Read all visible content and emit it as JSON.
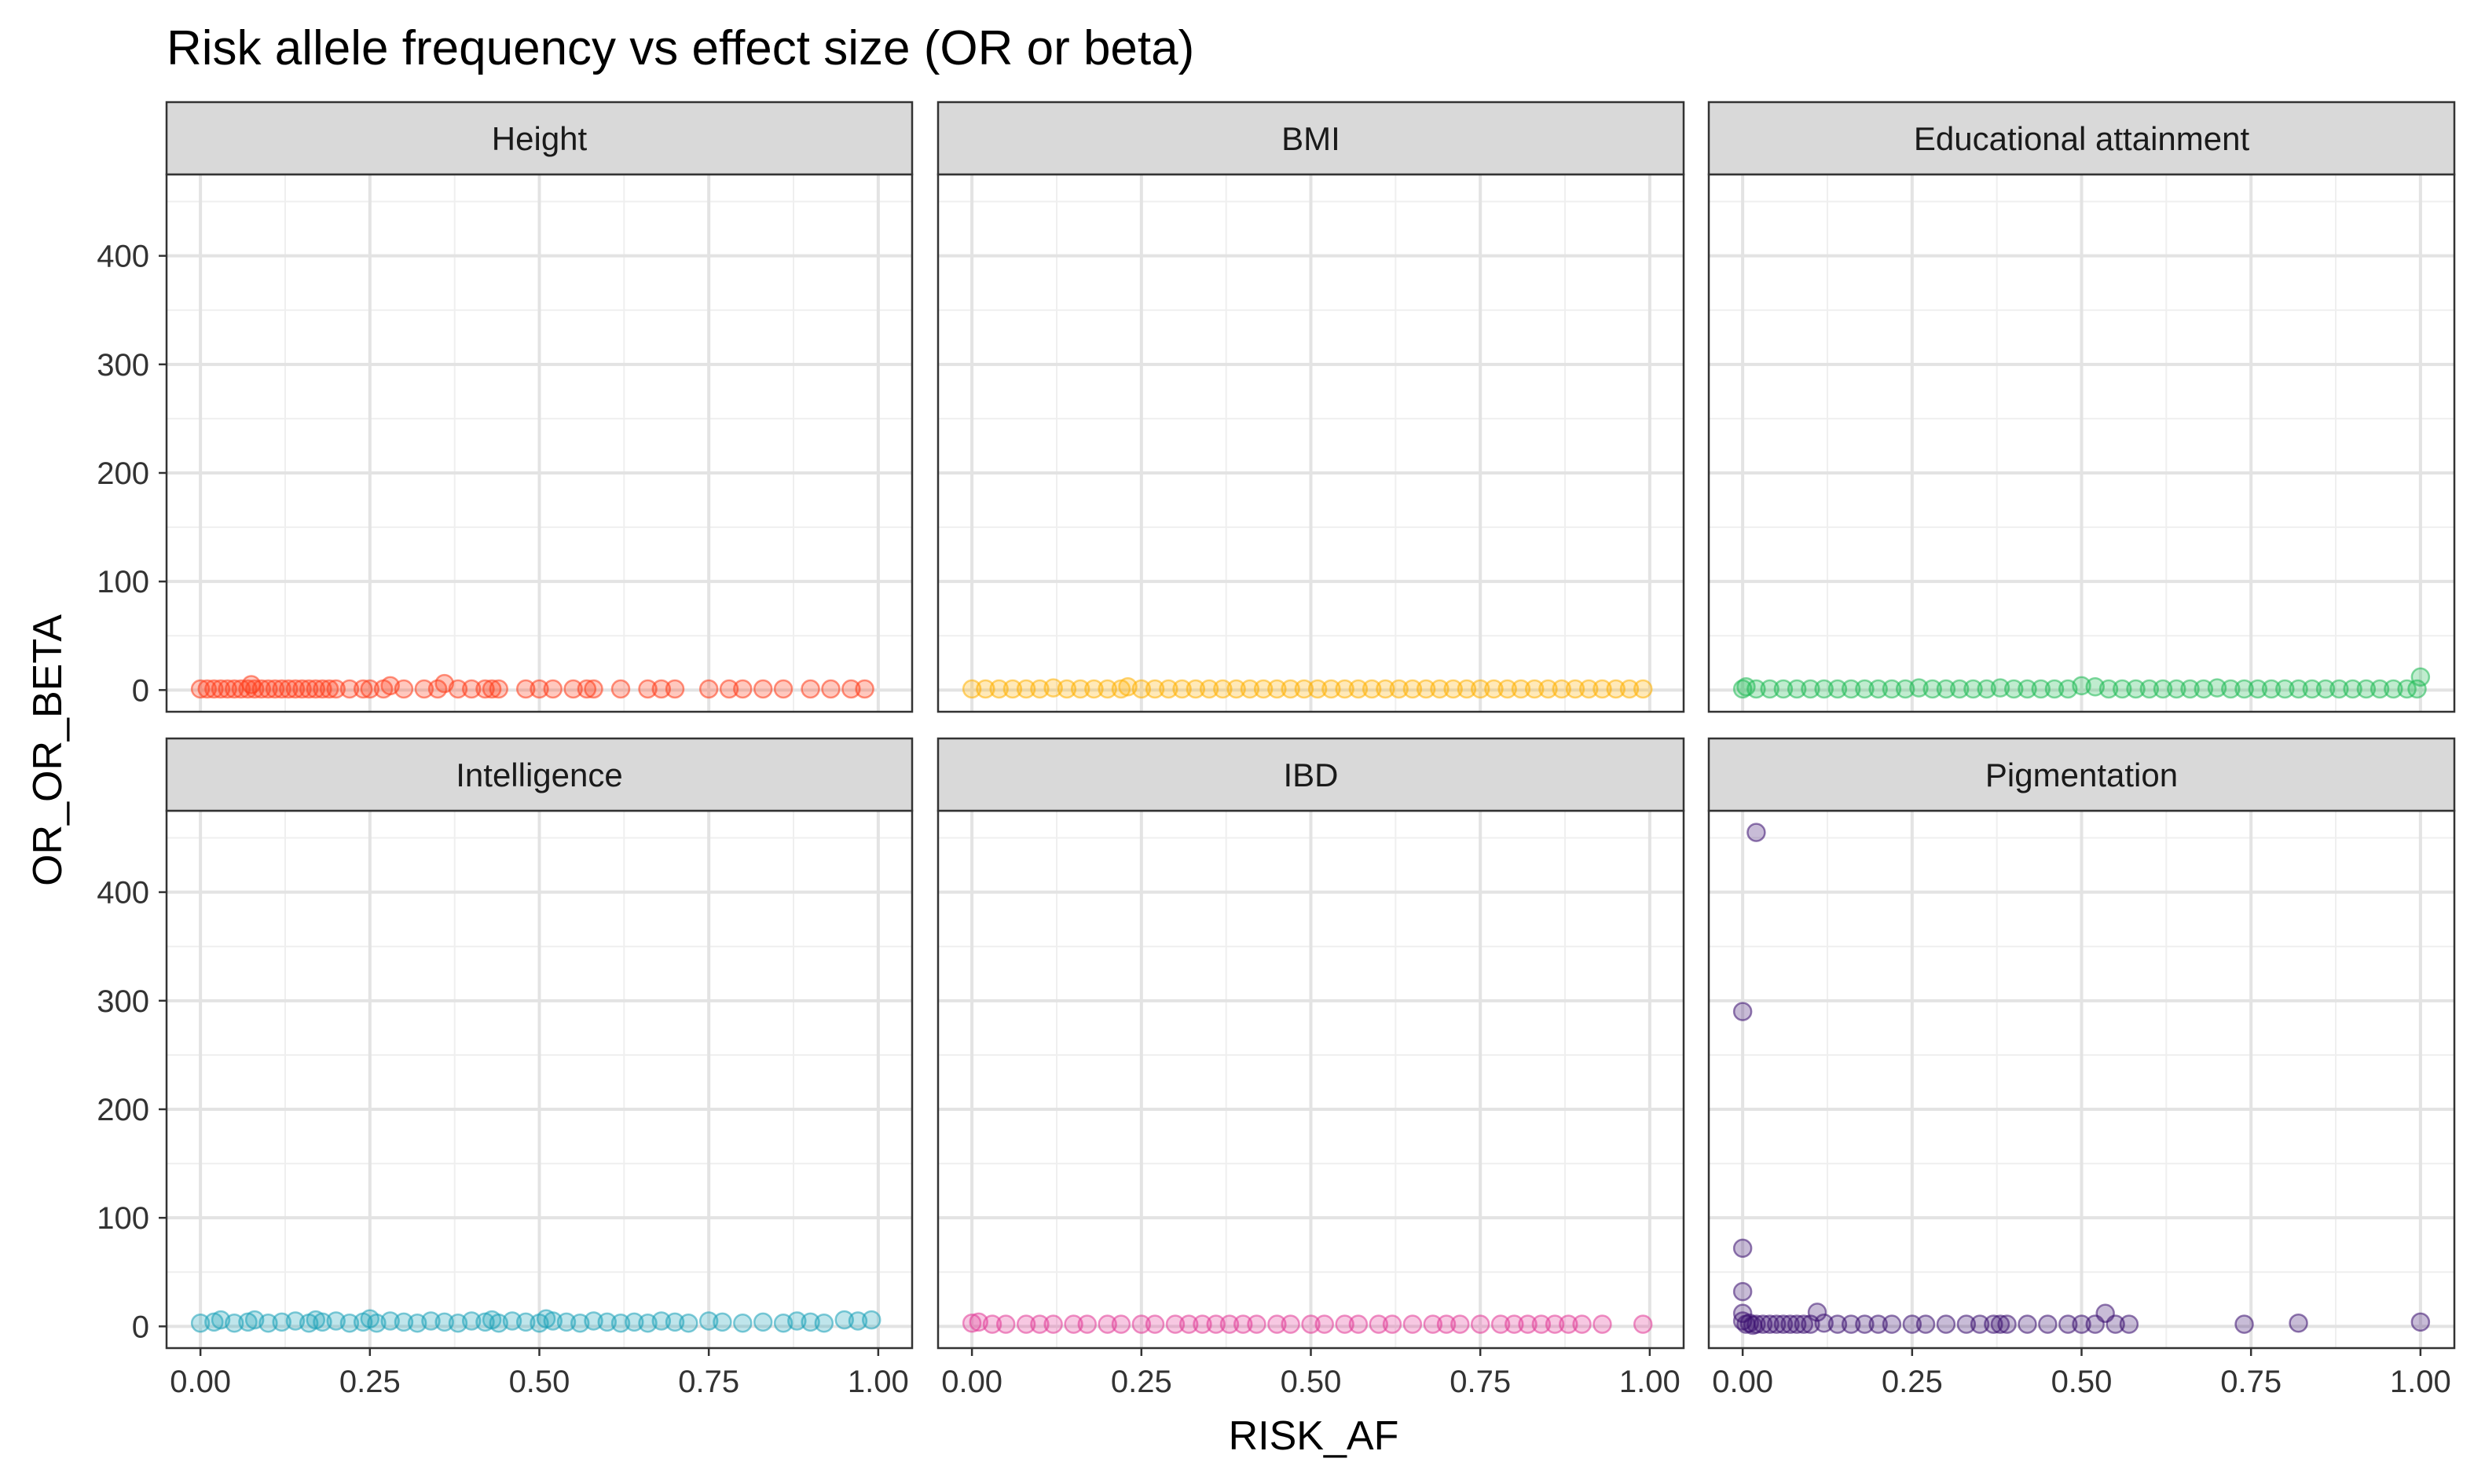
{
  "chart_data": {
    "type": "scatter",
    "title": "Risk allele frequency vs effect size (OR or beta)",
    "xlabel": "RISK_AF",
    "ylabel": "OR_OR_BETA",
    "xlim": [
      -0.05,
      1.05
    ],
    "ylim": [
      -20,
      475
    ],
    "x_ticks": [
      "0.00",
      "0.25",
      "0.50",
      "0.75",
      "1.00"
    ],
    "x_tick_values": [
      0,
      0.25,
      0.5,
      0.75,
      1.0
    ],
    "y_ticks": [
      "0",
      "100",
      "200",
      "300",
      "400"
    ],
    "y_tick_values": [
      0,
      100,
      200,
      300,
      400
    ],
    "grid": true,
    "legend": "none",
    "facet_layout": "3 columns x 2 rows, shared axes",
    "panels": [
      {
        "name": "Height",
        "color": "#FF3A17",
        "points": [
          [
            0.0,
            1
          ],
          [
            0.01,
            1
          ],
          [
            0.02,
            1
          ],
          [
            0.03,
            1
          ],
          [
            0.04,
            1
          ],
          [
            0.05,
            1
          ],
          [
            0.06,
            1
          ],
          [
            0.07,
            1
          ],
          [
            0.075,
            5
          ],
          [
            0.08,
            1
          ],
          [
            0.09,
            1
          ],
          [
            0.1,
            1
          ],
          [
            0.11,
            1
          ],
          [
            0.12,
            1
          ],
          [
            0.13,
            1
          ],
          [
            0.14,
            1
          ],
          [
            0.15,
            1
          ],
          [
            0.16,
            1
          ],
          [
            0.17,
            1
          ],
          [
            0.18,
            1
          ],
          [
            0.19,
            1
          ],
          [
            0.2,
            1
          ],
          [
            0.22,
            1
          ],
          [
            0.24,
            1
          ],
          [
            0.25,
            1
          ],
          [
            0.27,
            1
          ],
          [
            0.28,
            4
          ],
          [
            0.3,
            1
          ],
          [
            0.33,
            1
          ],
          [
            0.35,
            1
          ],
          [
            0.36,
            6
          ],
          [
            0.38,
            1
          ],
          [
            0.4,
            1
          ],
          [
            0.42,
            1
          ],
          [
            0.43,
            1
          ],
          [
            0.44,
            1
          ],
          [
            0.48,
            1
          ],
          [
            0.5,
            1
          ],
          [
            0.52,
            1
          ],
          [
            0.55,
            1
          ],
          [
            0.57,
            1
          ],
          [
            0.58,
            1
          ],
          [
            0.62,
            1
          ],
          [
            0.66,
            1
          ],
          [
            0.68,
            1
          ],
          [
            0.7,
            1
          ],
          [
            0.75,
            1
          ],
          [
            0.78,
            1
          ],
          [
            0.8,
            1
          ],
          [
            0.83,
            1
          ],
          [
            0.86,
            1
          ],
          [
            0.9,
            1
          ],
          [
            0.93,
            1
          ],
          [
            0.96,
            1
          ],
          [
            0.98,
            1
          ]
        ]
      },
      {
        "name": "BMI",
        "color": "#FFB000",
        "points": [
          [
            0.0,
            1
          ],
          [
            0.02,
            1
          ],
          [
            0.04,
            1
          ],
          [
            0.06,
            1
          ],
          [
            0.08,
            1
          ],
          [
            0.1,
            1
          ],
          [
            0.12,
            2
          ],
          [
            0.14,
            1
          ],
          [
            0.16,
            1
          ],
          [
            0.18,
            1
          ],
          [
            0.2,
            1
          ],
          [
            0.22,
            1
          ],
          [
            0.23,
            3
          ],
          [
            0.25,
            1
          ],
          [
            0.27,
            1
          ],
          [
            0.29,
            1
          ],
          [
            0.31,
            1
          ],
          [
            0.33,
            1
          ],
          [
            0.35,
            1
          ],
          [
            0.37,
            1
          ],
          [
            0.39,
            1
          ],
          [
            0.41,
            1
          ],
          [
            0.43,
            1
          ],
          [
            0.45,
            1
          ],
          [
            0.47,
            1
          ],
          [
            0.49,
            1
          ],
          [
            0.51,
            1
          ],
          [
            0.53,
            1
          ],
          [
            0.55,
            1
          ],
          [
            0.57,
            1
          ],
          [
            0.59,
            1
          ],
          [
            0.61,
            1
          ],
          [
            0.63,
            1
          ],
          [
            0.65,
            1
          ],
          [
            0.67,
            1
          ],
          [
            0.69,
            1
          ],
          [
            0.71,
            1
          ],
          [
            0.73,
            1
          ],
          [
            0.75,
            1
          ],
          [
            0.77,
            1
          ],
          [
            0.79,
            1
          ],
          [
            0.81,
            1
          ],
          [
            0.83,
            1
          ],
          [
            0.85,
            1
          ],
          [
            0.87,
            1
          ],
          [
            0.89,
            1
          ],
          [
            0.91,
            1
          ],
          [
            0.93,
            1
          ],
          [
            0.95,
            1
          ],
          [
            0.97,
            1
          ],
          [
            0.99,
            1
          ]
        ]
      },
      {
        "name": "Educational attainment",
        "color": "#1DB954",
        "points": [
          [
            0.0,
            1
          ],
          [
            0.005,
            3
          ],
          [
            0.02,
            1
          ],
          [
            0.04,
            1
          ],
          [
            0.06,
            1
          ],
          [
            0.08,
            1
          ],
          [
            0.1,
            1
          ],
          [
            0.12,
            1
          ],
          [
            0.14,
            1
          ],
          [
            0.16,
            1
          ],
          [
            0.18,
            1
          ],
          [
            0.2,
            1
          ],
          [
            0.22,
            1
          ],
          [
            0.24,
            1
          ],
          [
            0.26,
            2
          ],
          [
            0.28,
            1
          ],
          [
            0.3,
            1
          ],
          [
            0.32,
            1
          ],
          [
            0.34,
            1
          ],
          [
            0.36,
            1
          ],
          [
            0.38,
            2
          ],
          [
            0.4,
            1
          ],
          [
            0.42,
            1
          ],
          [
            0.44,
            1
          ],
          [
            0.46,
            1
          ],
          [
            0.48,
            1
          ],
          [
            0.5,
            4
          ],
          [
            0.52,
            3
          ],
          [
            0.54,
            1
          ],
          [
            0.56,
            1
          ],
          [
            0.58,
            1
          ],
          [
            0.6,
            1
          ],
          [
            0.62,
            1
          ],
          [
            0.64,
            1
          ],
          [
            0.66,
            1
          ],
          [
            0.68,
            1
          ],
          [
            0.7,
            2
          ],
          [
            0.72,
            1
          ],
          [
            0.74,
            1
          ],
          [
            0.76,
            1
          ],
          [
            0.78,
            1
          ],
          [
            0.8,
            1
          ],
          [
            0.82,
            1
          ],
          [
            0.84,
            1
          ],
          [
            0.86,
            1
          ],
          [
            0.88,
            1
          ],
          [
            0.9,
            1
          ],
          [
            0.92,
            1
          ],
          [
            0.94,
            1
          ],
          [
            0.96,
            1
          ],
          [
            0.98,
            1
          ],
          [
            0.995,
            1
          ],
          [
            1.0,
            12
          ]
        ]
      },
      {
        "name": "Intelligence",
        "color": "#1AA0B8",
        "points": [
          [
            0.0,
            3
          ],
          [
            0.02,
            4
          ],
          [
            0.03,
            6
          ],
          [
            0.05,
            3
          ],
          [
            0.07,
            4
          ],
          [
            0.08,
            6
          ],
          [
            0.1,
            3
          ],
          [
            0.12,
            4
          ],
          [
            0.14,
            5
          ],
          [
            0.16,
            3
          ],
          [
            0.17,
            6
          ],
          [
            0.18,
            4
          ],
          [
            0.2,
            5
          ],
          [
            0.22,
            3
          ],
          [
            0.24,
            4
          ],
          [
            0.25,
            7
          ],
          [
            0.26,
            3
          ],
          [
            0.28,
            5
          ],
          [
            0.3,
            4
          ],
          [
            0.32,
            3
          ],
          [
            0.34,
            5
          ],
          [
            0.36,
            4
          ],
          [
            0.38,
            3
          ],
          [
            0.4,
            5
          ],
          [
            0.42,
            4
          ],
          [
            0.43,
            6
          ],
          [
            0.44,
            3
          ],
          [
            0.46,
            5
          ],
          [
            0.48,
            4
          ],
          [
            0.5,
            3
          ],
          [
            0.51,
            7
          ],
          [
            0.52,
            5
          ],
          [
            0.54,
            4
          ],
          [
            0.56,
            3
          ],
          [
            0.58,
            5
          ],
          [
            0.6,
            4
          ],
          [
            0.62,
            3
          ],
          [
            0.64,
            4
          ],
          [
            0.66,
            3
          ],
          [
            0.68,
            5
          ],
          [
            0.7,
            4
          ],
          [
            0.72,
            3
          ],
          [
            0.75,
            5
          ],
          [
            0.77,
            4
          ],
          [
            0.8,
            3
          ],
          [
            0.83,
            4
          ],
          [
            0.86,
            3
          ],
          [
            0.88,
            5
          ],
          [
            0.9,
            4
          ],
          [
            0.92,
            3
          ],
          [
            0.95,
            6
          ],
          [
            0.97,
            5
          ],
          [
            0.99,
            6
          ]
        ]
      },
      {
        "name": "IBD",
        "color": "#E13A97",
        "points": [
          [
            0.0,
            3
          ],
          [
            0.01,
            4
          ],
          [
            0.03,
            2
          ],
          [
            0.05,
            2
          ],
          [
            0.08,
            2
          ],
          [
            0.1,
            2
          ],
          [
            0.12,
            2
          ],
          [
            0.15,
            2
          ],
          [
            0.17,
            2
          ],
          [
            0.2,
            2
          ],
          [
            0.22,
            2
          ],
          [
            0.25,
            2
          ],
          [
            0.27,
            2
          ],
          [
            0.3,
            2
          ],
          [
            0.32,
            2
          ],
          [
            0.34,
            2
          ],
          [
            0.36,
            2
          ],
          [
            0.38,
            2
          ],
          [
            0.4,
            2
          ],
          [
            0.42,
            2
          ],
          [
            0.45,
            2
          ],
          [
            0.47,
            2
          ],
          [
            0.5,
            2
          ],
          [
            0.52,
            2
          ],
          [
            0.55,
            2
          ],
          [
            0.57,
            2
          ],
          [
            0.6,
            2
          ],
          [
            0.62,
            2
          ],
          [
            0.65,
            2
          ],
          [
            0.68,
            2
          ],
          [
            0.7,
            2
          ],
          [
            0.72,
            2
          ],
          [
            0.75,
            2
          ],
          [
            0.78,
            2
          ],
          [
            0.8,
            2
          ],
          [
            0.82,
            2
          ],
          [
            0.84,
            2
          ],
          [
            0.86,
            2
          ],
          [
            0.88,
            2
          ],
          [
            0.9,
            2
          ],
          [
            0.93,
            2
          ],
          [
            0.99,
            2
          ]
        ]
      },
      {
        "name": "Pigmentation",
        "color": "#3B0F6F",
        "points": [
          [
            0.02,
            455
          ],
          [
            0.0,
            290
          ],
          [
            0.0,
            72
          ],
          [
            0.0,
            32
          ],
          [
            0.0,
            12
          ],
          [
            0.0,
            5
          ],
          [
            0.005,
            2
          ],
          [
            0.01,
            3
          ],
          [
            0.015,
            1
          ],
          [
            0.02,
            2
          ],
          [
            0.03,
            2
          ],
          [
            0.04,
            2
          ],
          [
            0.05,
            2
          ],
          [
            0.06,
            2
          ],
          [
            0.07,
            2
          ],
          [
            0.08,
            2
          ],
          [
            0.09,
            2
          ],
          [
            0.1,
            2
          ],
          [
            0.11,
            13
          ],
          [
            0.12,
            3
          ],
          [
            0.14,
            2
          ],
          [
            0.16,
            2
          ],
          [
            0.18,
            2
          ],
          [
            0.2,
            2
          ],
          [
            0.22,
            2
          ],
          [
            0.25,
            2
          ],
          [
            0.27,
            2
          ],
          [
            0.3,
            2
          ],
          [
            0.33,
            2
          ],
          [
            0.35,
            2
          ],
          [
            0.37,
            2
          ],
          [
            0.38,
            2
          ],
          [
            0.39,
            2
          ],
          [
            0.42,
            2
          ],
          [
            0.45,
            2
          ],
          [
            0.48,
            2
          ],
          [
            0.5,
            2
          ],
          [
            0.52,
            2
          ],
          [
            0.535,
            12
          ],
          [
            0.55,
            2
          ],
          [
            0.57,
            2
          ],
          [
            0.74,
            2
          ],
          [
            0.82,
            3
          ],
          [
            1.0,
            4
          ]
        ]
      }
    ]
  }
}
